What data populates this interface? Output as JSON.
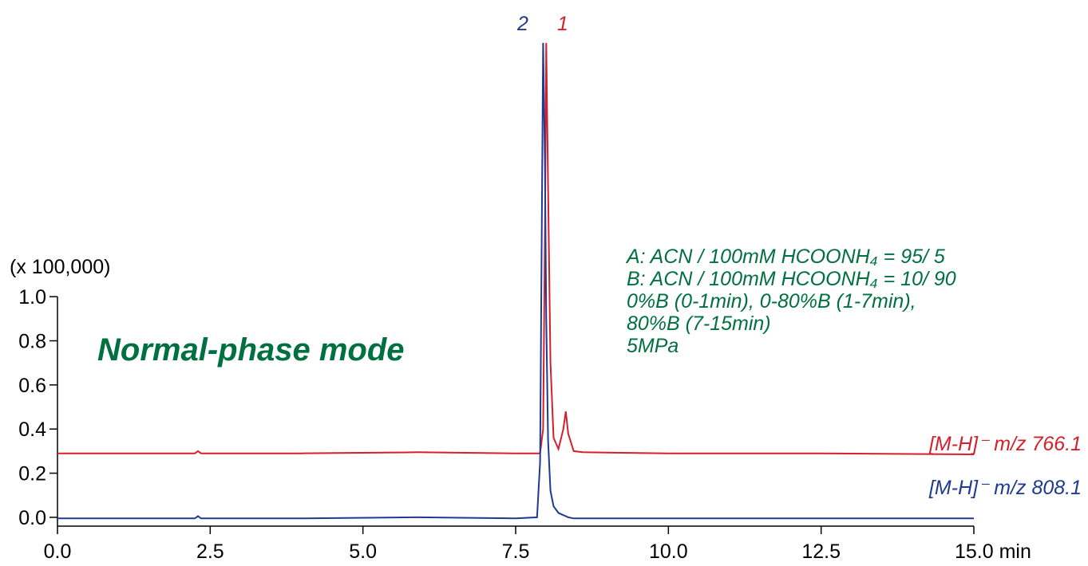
{
  "chart_data": {
    "type": "line",
    "y_unit_label": "(x 100,000)",
    "annotations": [
      "Normal-phase mode",
      "A: ACN / 100mM HCOONH₄ = 95/ 5",
      "B: ACN / 100mM HCOONH₄ = 10/ 90",
      "0%B (0-1min), 0-80%B (1-7min),",
      "80%B (7-15min)",
      "5MPa"
    ],
    "peak_labels": [
      "2",
      "1"
    ],
    "x": [
      0,
      1,
      2,
      2.25,
      2.3,
      2.35,
      2.5,
      4,
      5.9,
      7.5,
      7.85,
      7.9,
      7.95,
      7.98,
      8.0,
      8.03,
      8.07,
      8.12,
      8.2,
      8.28,
      8.32,
      8.36,
      8.45,
      8.6,
      10,
      12.5,
      15
    ],
    "series": [
      {
        "name": "[M-H]⁻ m/z 766.1",
        "color": "#d4202c",
        "values": [
          0.29,
          0.29,
          0.29,
          0.29,
          0.3,
          0.29,
          0.29,
          0.29,
          0.295,
          0.29,
          0.29,
          0.29,
          0.4,
          1.3,
          2.15,
          1.5,
          0.7,
          0.36,
          0.31,
          0.4,
          0.48,
          0.38,
          0.3,
          0.295,
          0.29,
          0.29,
          0.285
        ]
      },
      {
        "name": "[M-H]⁻ m/z 808.1",
        "color": "#1f3a8f",
        "values": [
          -0.005,
          -0.005,
          -0.005,
          -0.005,
          0.005,
          -0.005,
          -0.005,
          -0.005,
          0.0,
          -0.005,
          0.0,
          0.25,
          2.15,
          1.6,
          0.9,
          0.35,
          0.12,
          0.05,
          0.02,
          0.01,
          0.005,
          0.0,
          -0.005,
          -0.005,
          -0.005,
          -0.005,
          -0.005
        ]
      }
    ],
    "xlim": [
      0,
      15
    ],
    "xticks": [
      {
        "value": 0,
        "label": "0.0"
      },
      2.5,
      {
        "value": 5,
        "label": "5.0"
      },
      7.5,
      {
        "value": 10,
        "label": "10.0"
      },
      12.5,
      {
        "value": 15,
        "label": "15.0 min"
      }
    ],
    "ylim": [
      -0.04,
      2.2
    ],
    "yticks": [
      {
        "value": 0,
        "label": "0.0"
      },
      0.2,
      0.4,
      0.6,
      0.8,
      {
        "value": 1,
        "label": "1.0"
      }
    ],
    "grid": false
  }
}
